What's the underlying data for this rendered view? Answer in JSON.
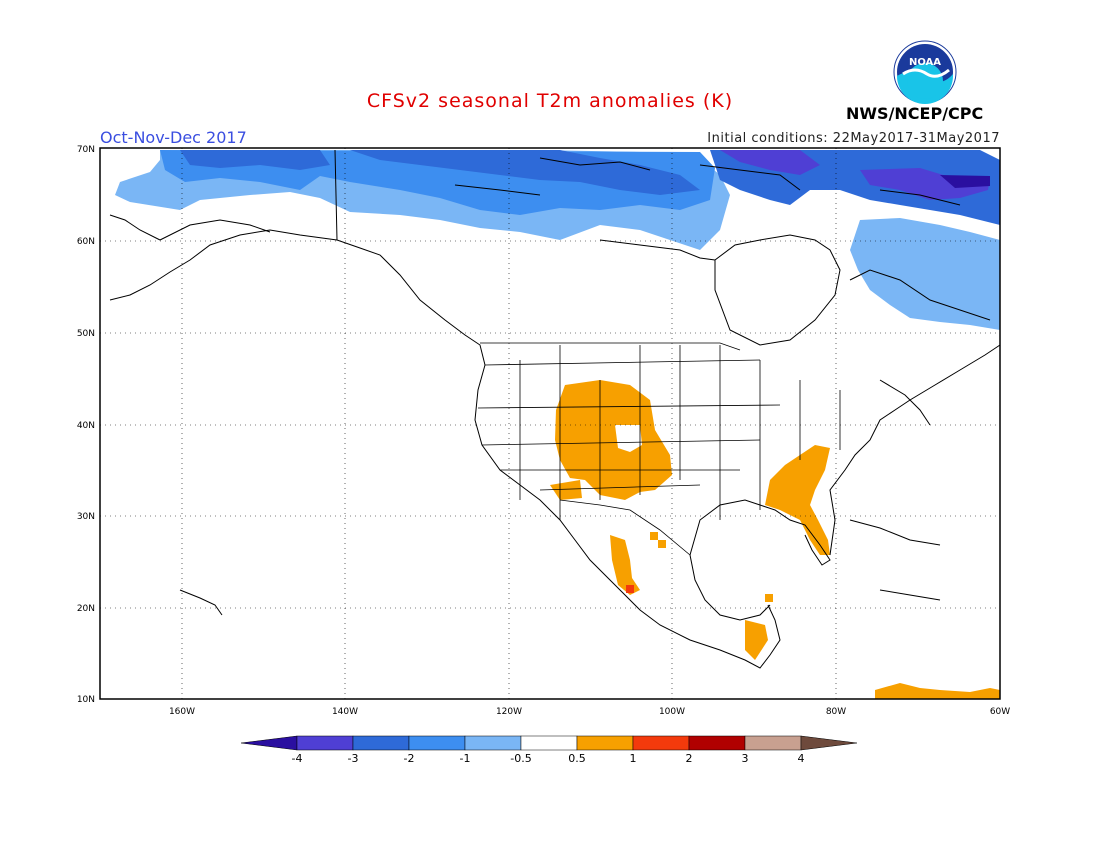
{
  "title": "CFSv2 seasonal T2m anomalies (K)",
  "period": "Oct-Nov-Dec 2017",
  "initial_conditions": "Initial conditions: 22May2017-31May2017",
  "agency": "NWS/NCEP/CPC",
  "logo": {
    "icon": "noaa-logo",
    "text": "NOAA"
  },
  "map": {
    "lon_range": [
      -175,
      -60
    ],
    "lat_range": [
      10,
      70
    ],
    "lat_labels": [
      "70N",
      "60N",
      "50N",
      "40N",
      "30N",
      "20N",
      "10N"
    ],
    "lon_labels": [
      "160W",
      "140W",
      "120W",
      "100W",
      "80W",
      "60W"
    ]
  },
  "colorbar": {
    "labels": [
      "-4",
      "-3",
      "-2",
      "-1",
      "-0.5",
      "0.5",
      "1",
      "2",
      "3",
      "4"
    ],
    "colors": [
      "#2a0fa0",
      "#4f3fd4",
      "#2e6ad8",
      "#3d8ef0",
      "#7ab6f5",
      "#ffffff",
      "#f7a000",
      "#f33a0c",
      "#b00000",
      "#c8a090",
      "#6e4a3c"
    ]
  }
}
